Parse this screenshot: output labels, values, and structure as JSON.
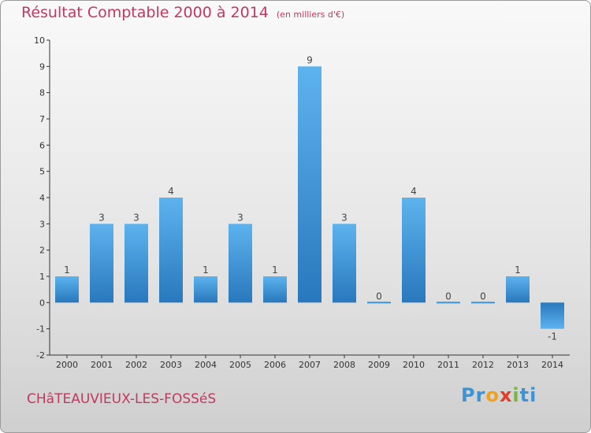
{
  "chart_data": {
    "type": "bar",
    "title": "Résultat Comptable 2000 à 2014",
    "subtitle": "(en milliers d'€)",
    "categories": [
      "2000",
      "2001",
      "2002",
      "2003",
      "2004",
      "2005",
      "2006",
      "2007",
      "2008",
      "2009",
      "2010",
      "2011",
      "2012",
      "2013",
      "2014"
    ],
    "values": [
      1,
      3,
      3,
      4,
      1,
      3,
      1,
      9,
      3,
      0,
      4,
      0,
      0,
      1,
      -1
    ],
    "y_ticks": [
      -2,
      -1,
      0,
      1,
      2,
      3,
      4,
      5,
      6,
      7,
      8,
      9,
      10
    ],
    "ylim": [
      -2,
      10
    ],
    "xlabel": "",
    "ylabel": "",
    "grid": false,
    "bar_color": "#3a95d8"
  },
  "footer": {
    "commune": "CHâTEAUVIEUX-LES-FOSSéS",
    "logo_letters": [
      "P",
      "r",
      "o",
      "x",
      "i",
      "t",
      "i"
    ],
    "logo_colors": [
      "#3a95d8",
      "#3a95d8",
      "#f2a21a",
      "#e23d2a",
      "#7ab63a",
      "#3a95d8",
      "#3a95d8"
    ]
  },
  "colors": {
    "title": "#c0395f",
    "axis": "#333333"
  }
}
